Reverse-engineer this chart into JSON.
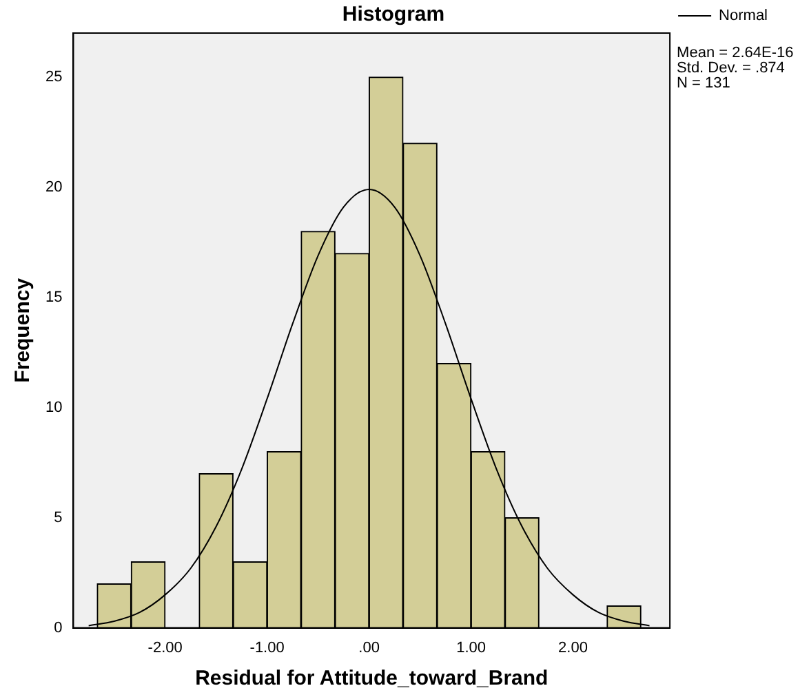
{
  "chart_data": {
    "type": "histogram",
    "title": "Histogram",
    "xlabel": "Residual for Attitude_toward_Brand",
    "ylabel": "Frequency",
    "bins": [
      -2.667,
      -2.333,
      -2,
      -1.667,
      -1.333,
      -1,
      -0.667,
      -0.333,
      0,
      0.333,
      0.667,
      1,
      1.333,
      1.667,
      2,
      2.333,
      2.667
    ],
    "values": [
      2,
      3,
      0,
      7,
      3,
      8,
      18,
      17,
      25,
      22,
      12,
      8,
      5,
      0,
      0,
      1
    ],
    "color": "#d3ce97",
    "series": [
      {
        "type": "line",
        "name": "Normal",
        "color": "#000000",
        "x": [
          -2.75,
          -2.5,
          -2.25,
          -2,
          -1.75,
          -1.5,
          -1.25,
          -1,
          -0.75,
          -0.5,
          -0.25,
          0,
          0.25,
          0.5,
          0.75,
          1,
          1.25,
          1.5,
          1.75,
          2,
          2.25,
          2.5,
          2.75
        ],
        "values": [
          0.1,
          0.3,
          0.7,
          1.5,
          2.7,
          4.6,
          7.2,
          10.4,
          13.8,
          16.9,
          19.1,
          19.9,
          19.1,
          16.9,
          13.8,
          10.4,
          7.2,
          4.6,
          2.7,
          1.5,
          0.7,
          0.3,
          0.1
        ]
      }
    ],
    "xlim": [
      -2.9,
      2.95
    ],
    "ylim": [
      0,
      27
    ],
    "xticks": [
      {
        "value": -2,
        "label": "-2.00"
      },
      {
        "value": -1,
        "label": "-1.00"
      },
      {
        "value": 0,
        "label": ".00"
      },
      {
        "value": 1,
        "label": "1.00"
      },
      {
        "value": 2,
        "label": "2.00"
      }
    ],
    "yticks": [
      0,
      5,
      10,
      15,
      20,
      25
    ],
    "legend": "top right",
    "grid": false,
    "marker": "none",
    "annotations": [
      "Mean = 2.64E-16",
      "Std. Dev. = .874",
      "N = 131"
    ]
  }
}
